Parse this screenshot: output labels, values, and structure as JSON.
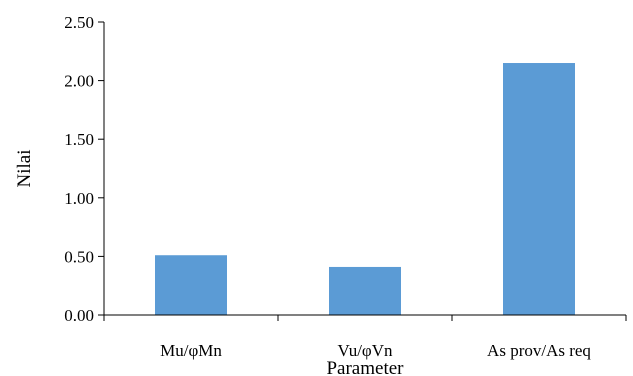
{
  "chart_data": {
    "type": "bar",
    "title": "",
    "xlabel": "Parameter",
    "ylabel": "Nilai",
    "categories": [
      "Mu/φMn",
      "Vu/φVn",
      "As prov/As req"
    ],
    "values": [
      0.51,
      0.41,
      2.15
    ],
    "ylim": [
      0,
      2.5
    ],
    "yticks": [
      "0.00",
      "0.50",
      "1.00",
      "1.50",
      "2.00",
      "2.50"
    ],
    "grid": false,
    "legend": "none",
    "bar_color": "#5b9bd5",
    "axis_color": "#000000"
  }
}
